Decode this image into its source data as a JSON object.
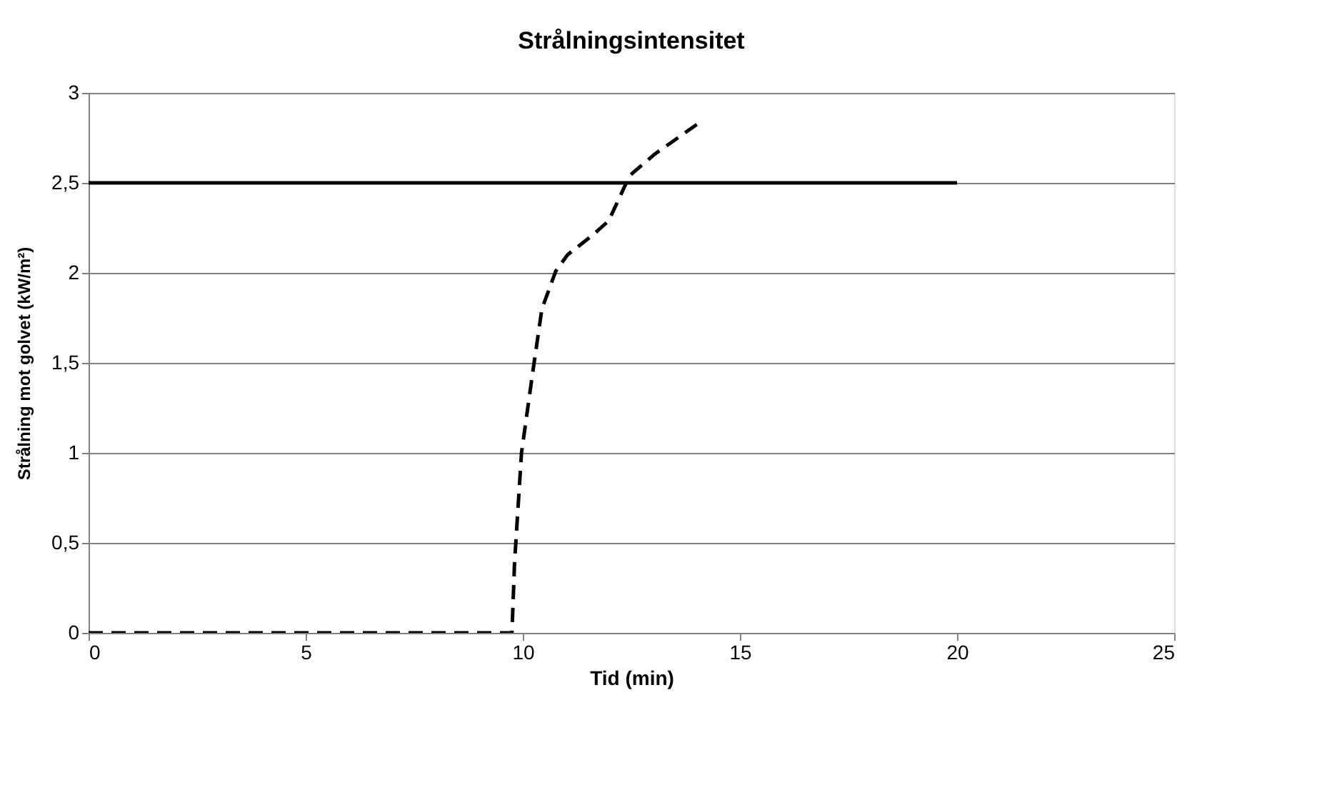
{
  "chart_data": {
    "type": "line",
    "title": "Strålningsintensitet",
    "xlabel": "Tid (min)",
    "ylabel": "Strålning mot golvet (kW/m²)",
    "xlim": [
      0,
      25
    ],
    "xticks": [
      0,
      5,
      10,
      15,
      20,
      25
    ],
    "ylim": [
      0,
      3
    ],
    "yticks": [
      {
        "value": 0,
        "label": "0"
      },
      {
        "value": 0.5,
        "label": "0,5"
      },
      {
        "value": 1,
        "label": "1"
      },
      {
        "value": 1.5,
        "label": "1,5"
      },
      {
        "value": 2,
        "label": "2"
      },
      {
        "value": 2.5,
        "label": "2,5"
      },
      {
        "value": 3,
        "label": "3"
      }
    ],
    "grid": "y",
    "marker": "none",
    "series": [
      {
        "color": "#000000",
        "line_style": "solid",
        "x": [
          0,
          20
        ],
        "values": [
          2.5,
          2.5
        ]
      },
      {
        "color": "#000000",
        "line_style": "dashed",
        "x": [
          0,
          9.75,
          9.81,
          9.97,
          10.23,
          10.44,
          10.76,
          11.03,
          11.61,
          11.98,
          12.46,
          13.04,
          14.1
        ],
        "values": [
          0,
          0,
          0.39,
          1.0,
          1.45,
          1.8,
          2.01,
          2.1,
          2.21,
          2.29,
          2.54,
          2.66,
          2.84
        ]
      }
    ]
  }
}
